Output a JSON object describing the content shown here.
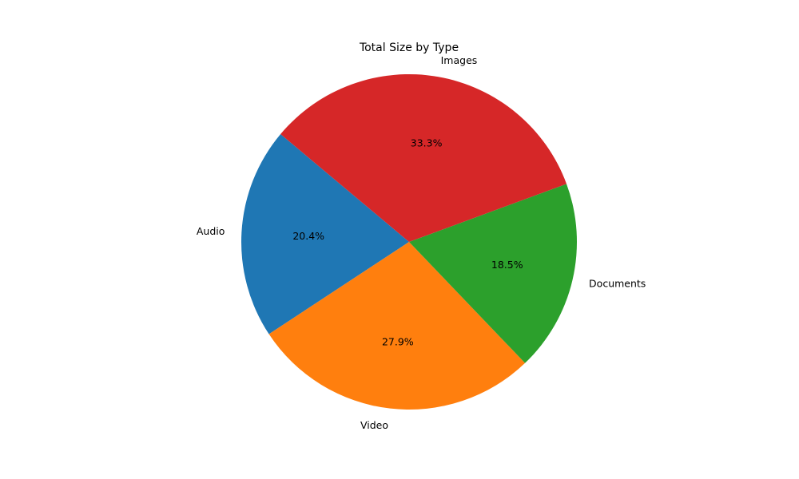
{
  "chart_data": {
    "type": "pie",
    "title": "Total Size by Type",
    "slices": [
      {
        "label": "Audio",
        "pct_label": "20.4%",
        "value": 20.4,
        "color": "#1f77b4"
      },
      {
        "label": "Video",
        "pct_label": "27.9%",
        "value": 27.9,
        "color": "#ff7f0e"
      },
      {
        "label": "Documents",
        "pct_label": "18.5%",
        "value": 18.5,
        "color": "#2ca02c"
      },
      {
        "label": "Images",
        "pct_label": "33.3%",
        "value": 33.3,
        "color": "#d62728"
      }
    ],
    "start_angle_deg": 140,
    "direction": "counterclockwise",
    "legend": "none"
  }
}
